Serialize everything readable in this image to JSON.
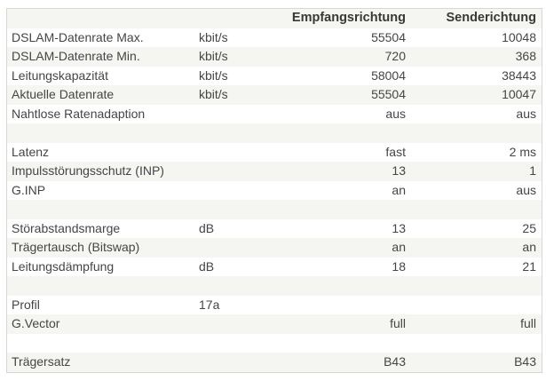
{
  "table": {
    "column_headers": {
      "empfang": "Empfangsrichtung",
      "sende": "Senderichtung"
    },
    "rows": [
      {
        "label": "DSLAM-Datenrate Max.",
        "unit": "kbit/s",
        "rx": "55504",
        "tx": "10048"
      },
      {
        "label": "DSLAM-Datenrate Min.",
        "unit": "kbit/s",
        "rx": "720",
        "tx": "368"
      },
      {
        "label": "Leitungskapazität",
        "unit": "kbit/s",
        "rx": "58004",
        "tx": "38443"
      },
      {
        "label": "Aktuelle Datenrate",
        "unit": "kbit/s",
        "rx": "55504",
        "tx": "10047"
      },
      {
        "label": "Nahtlose Ratenadaption",
        "unit": "",
        "rx": "aus",
        "tx": "aus"
      },
      {
        "spacer": true,
        "label": "",
        "unit": "",
        "rx": "",
        "tx": ""
      },
      {
        "label": "Latenz",
        "unit": "",
        "rx": "fast",
        "tx": "2 ms"
      },
      {
        "label": "Impulsstörungsschutz (INP)",
        "unit": "",
        "rx": "13",
        "tx": "1"
      },
      {
        "label": "G.INP",
        "unit": "",
        "rx": "an",
        "tx": "aus"
      },
      {
        "spacer": true,
        "label": "",
        "unit": "",
        "rx": "",
        "tx": ""
      },
      {
        "label": "Störabstandsmarge",
        "unit": "dB",
        "rx": "13",
        "tx": "25"
      },
      {
        "label": "Trägertausch (Bitswap)",
        "unit": "",
        "rx": "an",
        "tx": "an"
      },
      {
        "label": "Leitungsdämpfung",
        "unit": "dB",
        "rx": "18",
        "tx": "21"
      },
      {
        "spacer": true,
        "label": "",
        "unit": "",
        "rx": "",
        "tx": ""
      },
      {
        "label": "Profil",
        "unit": "17a",
        "rx": "",
        "tx": ""
      },
      {
        "label": "G.Vector",
        "unit": "",
        "rx": "full",
        "tx": "full"
      },
      {
        "spacer": true,
        "label": "",
        "unit": "",
        "rx": "",
        "tx": ""
      },
      {
        "label": "Trägersatz",
        "unit": "",
        "rx": "B43",
        "tx": "B43"
      }
    ]
  },
  "colors": {
    "row_shade": "#f5f5f2",
    "row_plain": "#ffffff",
    "border": "#d8d8d3",
    "text": "#454545",
    "header_text": "#383838",
    "page_background": "#ffffff"
  }
}
